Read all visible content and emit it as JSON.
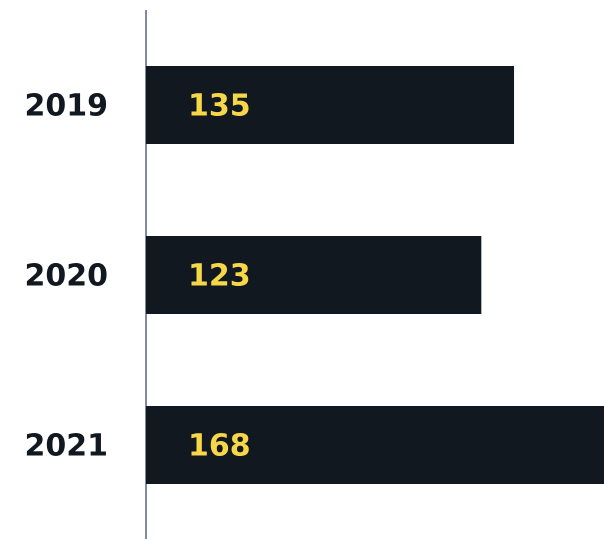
{
  "chart_data": {
    "type": "hbar",
    "categories": [
      "2019",
      "2020",
      "2021"
    ],
    "values": [
      135,
      123,
      168
    ],
    "color": "#111820",
    "label_color": "#f7d748",
    "xlim": [
      0,
      168
    ]
  }
}
